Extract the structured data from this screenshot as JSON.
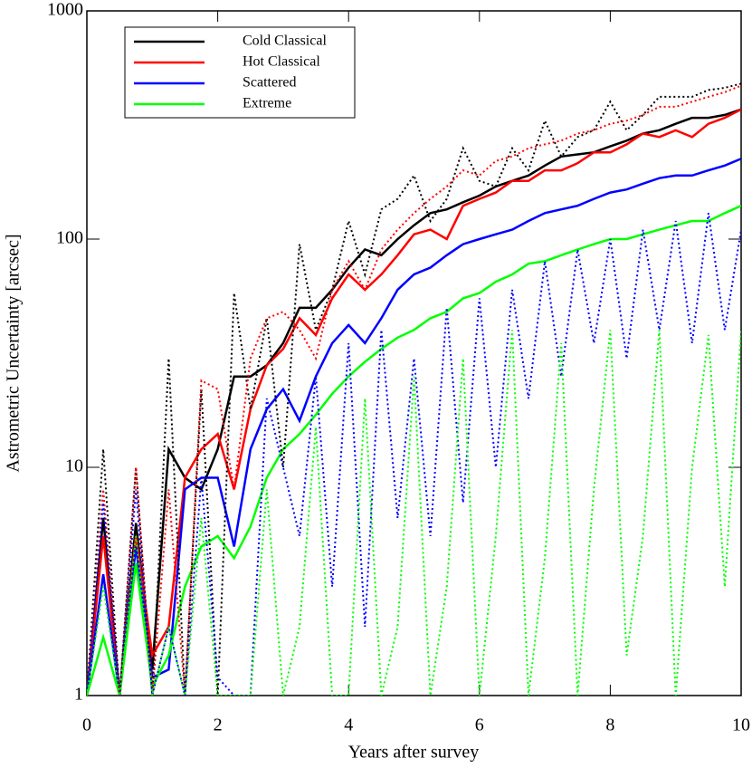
{
  "chart_data": {
    "type": "line",
    "x_label": "Years after survey",
    "y_label": "Astrometric Uncertainty [arcsec]",
    "xlim": [
      0,
      10
    ],
    "ylim": [
      1,
      1000
    ],
    "xticks": [
      0,
      2,
      4,
      6,
      8,
      10
    ],
    "yticks": [
      1,
      10,
      100,
      1000
    ],
    "y_scale": "log",
    "legend_position": "upper-left",
    "x": [
      0,
      0.25,
      0.5,
      0.75,
      1,
      1.25,
      1.5,
      1.75,
      2,
      2.25,
      2.5,
      2.75,
      3,
      3.25,
      3.5,
      3.75,
      4,
      4.25,
      4.5,
      4.75,
      5,
      5.25,
      5.5,
      5.75,
      6,
      6.25,
      6.5,
      6.75,
      7,
      7.25,
      7.5,
      7.75,
      8,
      8.25,
      8.5,
      8.75,
      9,
      9.25,
      9.5,
      9.75,
      10
    ],
    "series": [
      {
        "name": "Cold Classical",
        "color": "#000000",
        "style": "solid",
        "values": [
          1,
          6,
          1,
          5.7,
          1.3,
          12,
          9,
          8,
          12,
          25,
          25,
          28,
          35,
          50,
          50,
          60,
          75,
          90,
          85,
          100,
          115,
          130,
          135,
          145,
          155,
          170,
          180,
          190,
          210,
          230,
          235,
          240,
          255,
          270,
          290,
          300,
          320,
          340,
          340,
          350,
          370
        ]
      },
      {
        "name": "Hot Classical",
        "color": "#ff0000",
        "style": "solid",
        "values": [
          1,
          5,
          1,
          5,
          1.5,
          2,
          9,
          12,
          14,
          8,
          18,
          28,
          33,
          45,
          38,
          55,
          70,
          60,
          70,
          85,
          105,
          110,
          100,
          140,
          150,
          160,
          180,
          180,
          200,
          200,
          215,
          240,
          240,
          260,
          290,
          280,
          300,
          280,
          320,
          340,
          370
        ]
      },
      {
        "name": "Scattered",
        "color": "#0000ff",
        "style": "solid",
        "values": [
          1,
          3.4,
          1,
          4.5,
          1.2,
          1.3,
          8,
          9,
          9,
          4.5,
          12,
          18,
          22,
          16,
          25,
          35,
          42,
          35,
          45,
          60,
          70,
          75,
          85,
          95,
          100,
          105,
          110,
          120,
          130,
          135,
          140,
          150,
          160,
          165,
          175,
          185,
          190,
          190,
          200,
          210,
          225
        ]
      },
      {
        "name": "Extreme",
        "color": "#00ff00",
        "style": "solid",
        "values": [
          1,
          1.8,
          1,
          3.8,
          1.1,
          1.5,
          3,
          4.5,
          5,
          4,
          5.5,
          9,
          12,
          14,
          17,
          21,
          25,
          29,
          33,
          37,
          40,
          45,
          48,
          55,
          58,
          65,
          70,
          78,
          80,
          85,
          90,
          95,
          100,
          100,
          105,
          110,
          115,
          120,
          120,
          130,
          140
        ]
      },
      {
        "color": "#000000",
        "style": "dotted",
        "values": [
          1,
          12,
          1,
          10,
          1,
          30,
          1,
          22,
          1,
          58,
          18,
          45,
          10,
          95,
          40,
          60,
          120,
          70,
          135,
          150,
          190,
          120,
          150,
          250,
          180,
          170,
          250,
          200,
          330,
          230,
          280,
          300,
          400,
          300,
          350,
          420,
          420,
          420,
          450,
          460,
          480
        ]
      },
      {
        "color": "#ff0000",
        "style": "dotted",
        "values": [
          1,
          8,
          1,
          10,
          1,
          8,
          1,
          24,
          22,
          8,
          30,
          45,
          48,
          40,
          30,
          60,
          80,
          60,
          90,
          110,
          130,
          150,
          170,
          200,
          190,
          220,
          230,
          250,
          260,
          270,
          290,
          300,
          320,
          330,
          350,
          380,
          380,
          400,
          420,
          440,
          470
        ]
      },
      {
        "color": "#0000ff",
        "style": "dotted",
        "values": [
          1,
          7,
          1,
          8,
          1,
          2,
          1,
          9,
          1.2,
          1,
          1,
          20,
          10,
          5,
          25,
          3,
          35,
          2,
          40,
          6,
          30,
          5,
          50,
          7,
          55,
          10,
          60,
          20,
          80,
          25,
          90,
          35,
          100,
          30,
          110,
          40,
          120,
          35,
          130,
          40,
          110
        ]
      },
      {
        "color": "#00ff00",
        "style": "dotted",
        "values": [
          1,
          3,
          1,
          5,
          1,
          2,
          1,
          6,
          1,
          1,
          1,
          8,
          1,
          2,
          15,
          1,
          1,
          20,
          1,
          2,
          25,
          1,
          3,
          30,
          1,
          5,
          40,
          1,
          4,
          35,
          1,
          8,
          40,
          1.5,
          5,
          40,
          1,
          10,
          38,
          3,
          40
        ]
      }
    ]
  }
}
